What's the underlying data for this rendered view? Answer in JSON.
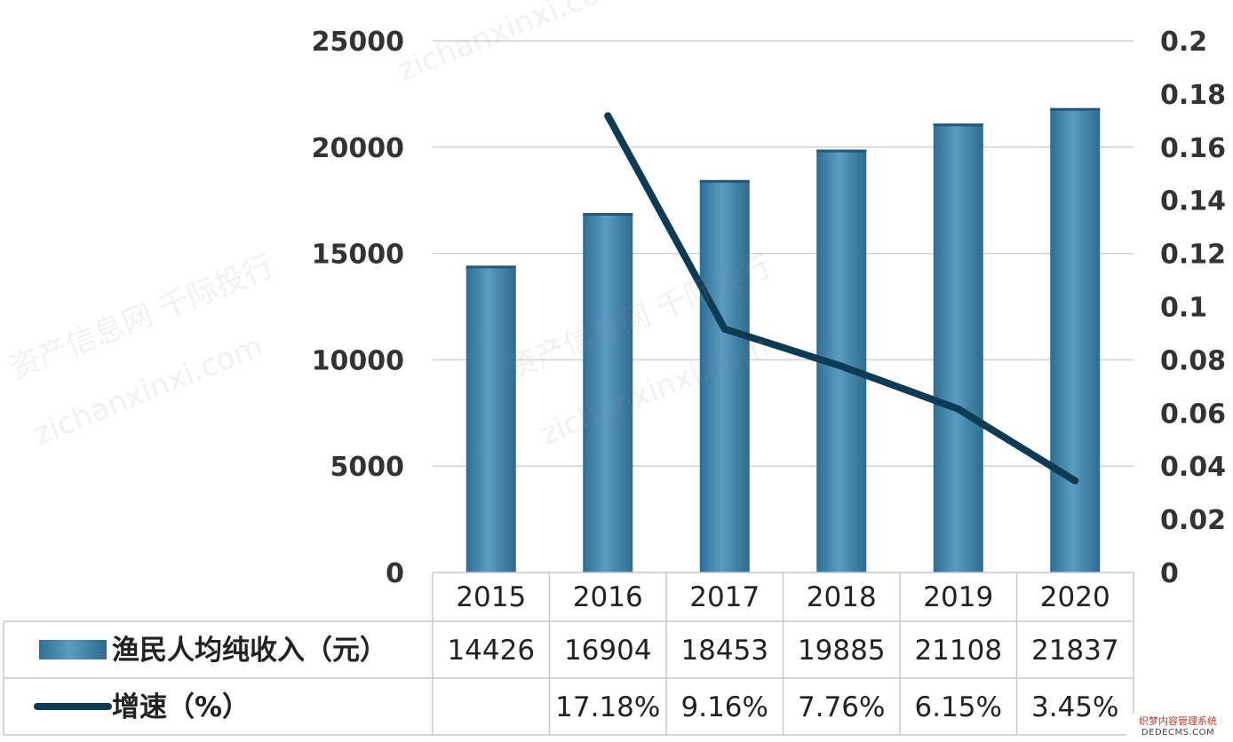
{
  "chart_data": {
    "type": "bar",
    "categories": [
      "2015",
      "2016",
      "2017",
      "2018",
      "2019",
      "2020"
    ],
    "series": [
      {
        "name": "渔民人均纯收入（元）",
        "type": "bar",
        "axis": "left",
        "values": [
          14426,
          16904,
          18453,
          19885,
          21108,
          21837
        ],
        "color": "#3e7ea4"
      },
      {
        "name": "增速（%）",
        "type": "line",
        "axis": "right",
        "values": [
          null,
          0.1718,
          0.0916,
          0.0776,
          0.0615,
          0.0345
        ],
        "color": "#0d3b54"
      }
    ],
    "y_left": {
      "ylim": [
        0,
        25000
      ],
      "ticks": [
        "25000",
        "20000",
        "15000",
        "10000",
        "5000",
        "0"
      ],
      "tick_values": [
        25000,
        20000,
        15000,
        10000,
        5000,
        0
      ]
    },
    "y_right": {
      "ylim": [
        0,
        0.2
      ],
      "ticks": [
        "0.2",
        "0.18",
        "0.16",
        "0.14",
        "0.12",
        "0.1",
        "0.08",
        "0.06",
        "0.04",
        "0.02",
        "0"
      ],
      "tick_values": [
        0.2,
        0.18,
        0.16,
        0.14,
        0.12,
        0.1,
        0.08,
        0.06,
        0.04,
        0.02,
        0
      ]
    },
    "grid": true,
    "data_table": {
      "rows": [
        {
          "legend": "渔民人均纯收入（元）",
          "cells": [
            "14426",
            "16904",
            "18453",
            "19885",
            "21108",
            "21837"
          ]
        },
        {
          "legend": "增速（%）",
          "cells": [
            "",
            "17.18%",
            "9.16%",
            "7.76%",
            "6.15%",
            "3.45%"
          ]
        }
      ]
    }
  },
  "watermarks": {
    "phrases": [
      "资产信息网",
      "千际投行",
      "zichanxinxi.com"
    ],
    "site_badge": {
      "line1": "织梦内容管理系统",
      "line2": "DEDECMS.COM"
    }
  }
}
